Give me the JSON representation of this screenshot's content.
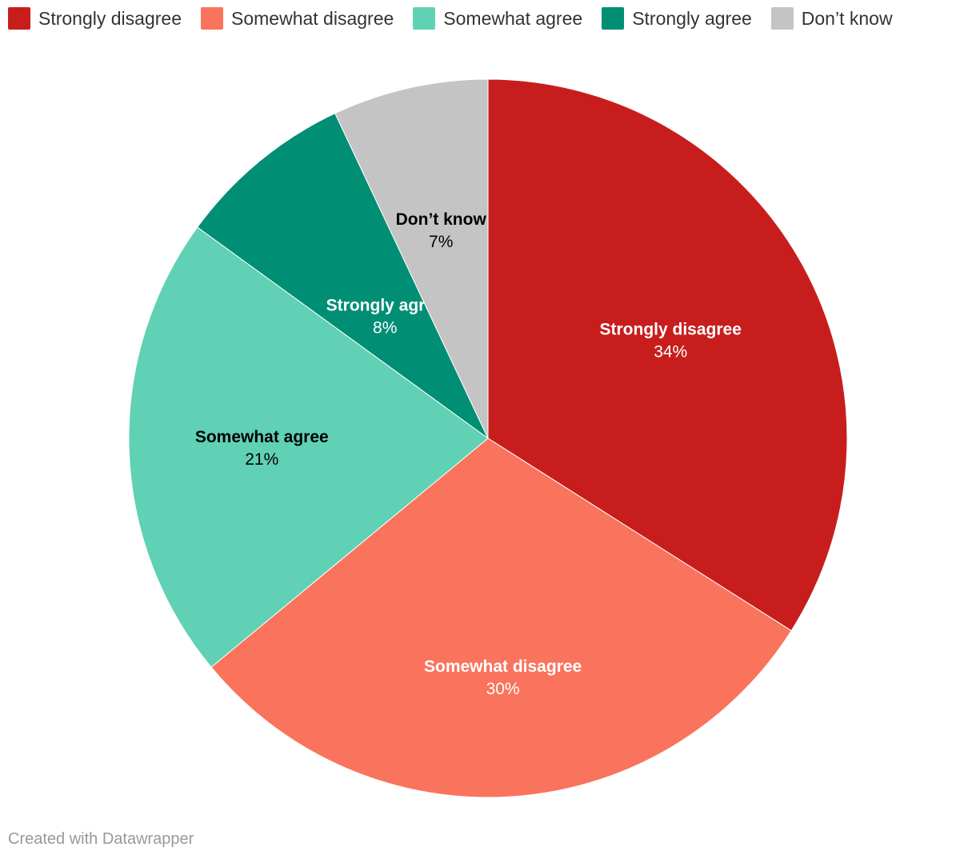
{
  "chart_data": {
    "type": "pie",
    "categories": [
      "Strongly disagree",
      "Somewhat disagree",
      "Somewhat agree",
      "Strongly agree",
      "Don’t know"
    ],
    "values": [
      34,
      30,
      21,
      8,
      7
    ],
    "labels": [
      "34%",
      "30%",
      "21%",
      "8%",
      "7%"
    ],
    "colors": [
      "#c71e1d",
      "#fa735c",
      "#60d1b4",
      "#008e75",
      "#c4c4c4"
    ],
    "label_colors": [
      "#ffffff",
      "#ffffff",
      "#000000",
      "#ffffff",
      "#000000"
    ],
    "legend_position": "top-left",
    "start_angle": "12 o'clock",
    "direction": "clockwise"
  },
  "footer": {
    "credit": "Created with Datawrapper"
  }
}
